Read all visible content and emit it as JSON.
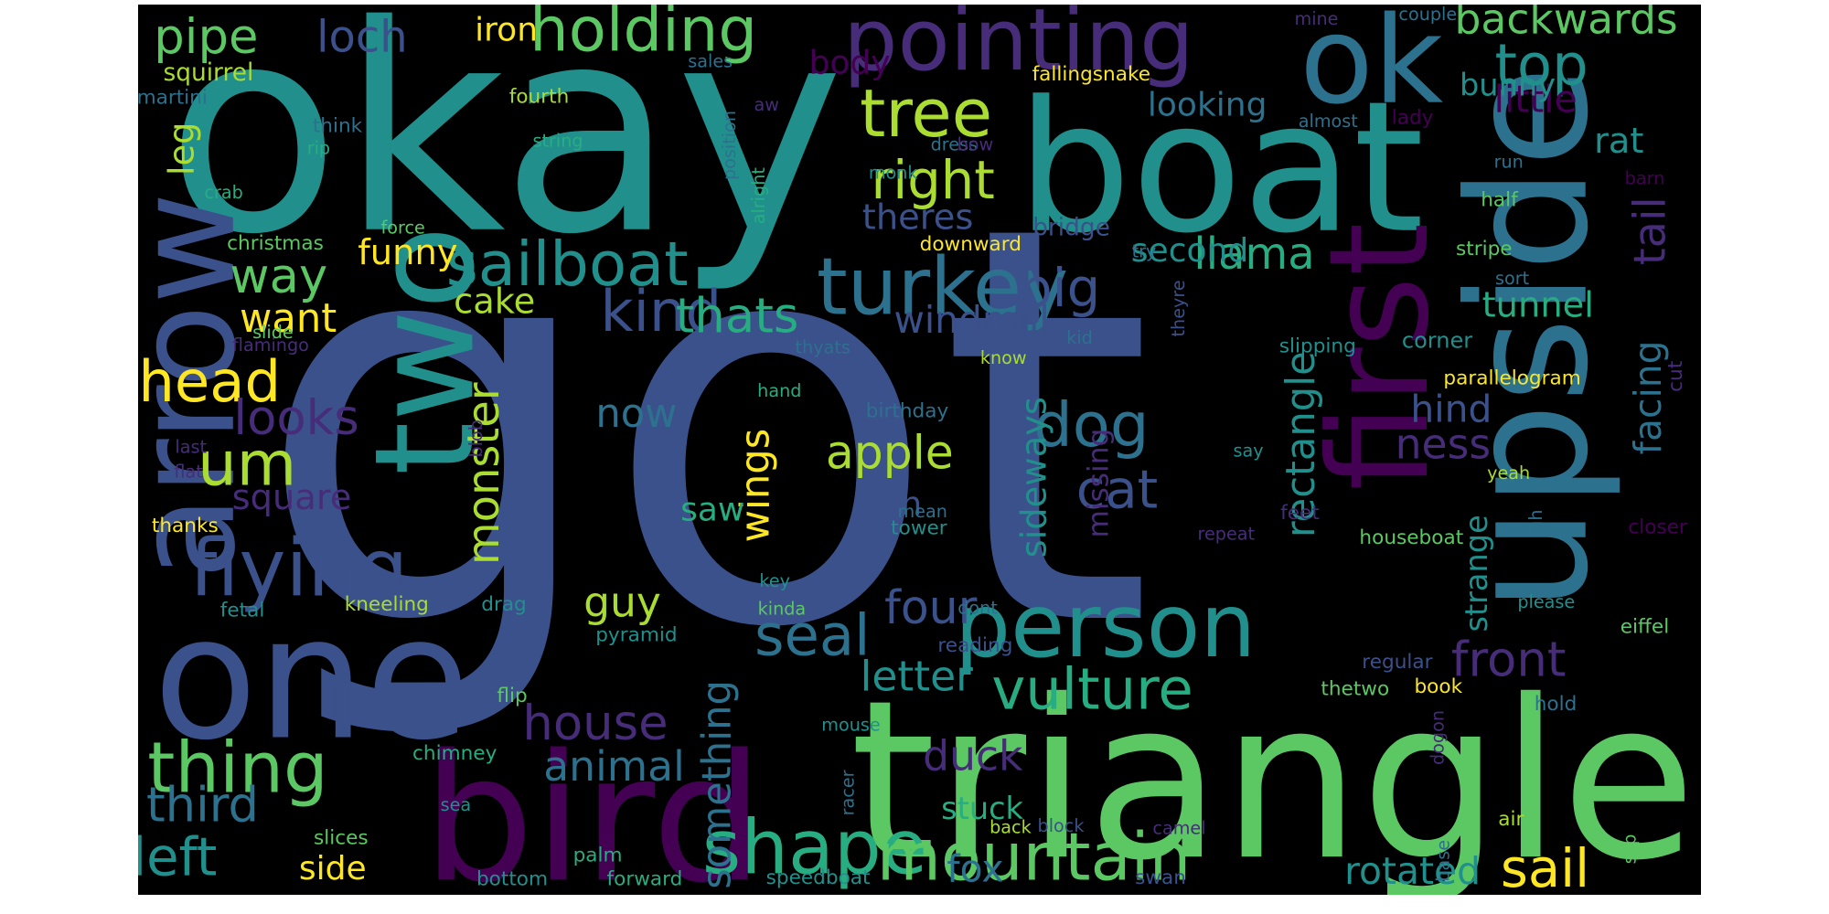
{
  "background_color": "#000000",
  "palette": [
    "#440154",
    "#472c7a",
    "#3b518b",
    "#2c718e",
    "#21908d",
    "#27ad81",
    "#5cc863",
    "#aadc32",
    "#fde725"
  ],
  "words": [
    {
      "text": "got",
      "color": "#3b518b"
    },
    {
      "text": "okay",
      "color": "#21908d"
    },
    {
      "text": "triangle",
      "color": "#5cc863"
    },
    {
      "text": "boat",
      "color": "#21908d"
    },
    {
      "text": "one",
      "color": "#3b518b"
    },
    {
      "text": "upside",
      "color": "#2c718e"
    },
    {
      "text": "bird",
      "color": "#440154"
    },
    {
      "text": "first",
      "color": "#440154"
    },
    {
      "text": "two",
      "color": "#21908d"
    },
    {
      "text": "arrow",
      "color": "#3b518b"
    },
    {
      "text": "ok",
      "color": "#2c718e"
    },
    {
      "text": "pointing",
      "color": "#472c7a"
    },
    {
      "text": "person",
      "color": "#21908d"
    },
    {
      "text": "turkey",
      "color": "#2c718e"
    },
    {
      "text": "flying",
      "color": "#3b518b"
    },
    {
      "text": "shape",
      "color": "#27ad81"
    },
    {
      "text": "mountain",
      "color": "#5cc863"
    },
    {
      "text": "thing",
      "color": "#5cc863"
    },
    {
      "text": "holding",
      "color": "#5cc863"
    },
    {
      "text": "sailboat",
      "color": "#21908d"
    },
    {
      "text": "vulture",
      "color": "#27ad81"
    },
    {
      "text": "tree",
      "color": "#aadc32"
    },
    {
      "text": "dog",
      "color": "#2c718e"
    },
    {
      "text": "top",
      "color": "#21908d"
    },
    {
      "text": "kind",
      "color": "#3b518b"
    },
    {
      "text": "um",
      "color": "#aadc32"
    },
    {
      "text": "head",
      "color": "#fde725"
    },
    {
      "text": "seal",
      "color": "#2c718e"
    },
    {
      "text": "cat",
      "color": "#3b518b"
    },
    {
      "text": "house",
      "color": "#472c7a"
    },
    {
      "text": "right",
      "color": "#aadc32"
    },
    {
      "text": "big",
      "color": "#3b518b"
    },
    {
      "text": "thats",
      "color": "#27ad81"
    },
    {
      "text": "left",
      "color": "#21908d"
    },
    {
      "text": "third",
      "color": "#2c718e"
    },
    {
      "text": "sail",
      "color": "#fde725"
    },
    {
      "text": "four",
      "color": "#3b518b"
    },
    {
      "text": "front",
      "color": "#472c7a"
    },
    {
      "text": "pipe",
      "color": "#5cc863"
    },
    {
      "text": "looks",
      "color": "#472c7a"
    },
    {
      "text": "monster",
      "color": "#aadc32"
    },
    {
      "text": "way",
      "color": "#5cc863"
    },
    {
      "text": "animal",
      "color": "#2c718e"
    },
    {
      "text": "llama",
      "color": "#27ad81"
    },
    {
      "text": "rectangle",
      "color": "#21908d"
    },
    {
      "text": "backwards",
      "color": "#5cc863"
    },
    {
      "text": "loch",
      "color": "#3b518b"
    },
    {
      "text": "apple",
      "color": "#aadc32"
    },
    {
      "text": "tail",
      "color": "#472c7a"
    },
    {
      "text": "wings",
      "color": "#fde725"
    },
    {
      "text": "letter",
      "color": "#21908d"
    },
    {
      "text": "something",
      "color": "#2c718e"
    },
    {
      "text": "rotated",
      "color": "#21908d"
    },
    {
      "text": "fox",
      "color": "#2c718e"
    },
    {
      "text": "sideways",
      "color": "#21908d"
    },
    {
      "text": "duck",
      "color": "#472c7a"
    },
    {
      "text": "now",
      "color": "#2c718e"
    },
    {
      "text": "guy",
      "color": "#aadc32"
    },
    {
      "text": "facing",
      "color": "#2c718e"
    },
    {
      "text": "ness",
      "color": "#472c7a"
    },
    {
      "text": "hind",
      "color": "#3b518b"
    },
    {
      "text": "square",
      "color": "#472c7a"
    },
    {
      "text": "want",
      "color": "#fde725"
    },
    {
      "text": "funny",
      "color": "#fde725"
    },
    {
      "text": "cake",
      "color": "#aadc32"
    },
    {
      "text": "windmill",
      "color": "#3b518b"
    },
    {
      "text": "theres",
      "color": "#3b518b"
    },
    {
      "text": "second",
      "color": "#21908d"
    },
    {
      "text": "missing",
      "color": "#472c7a"
    },
    {
      "text": "little",
      "color": "#440154"
    },
    {
      "text": "rat",
      "color": "#21908d"
    },
    {
      "text": "tunnel",
      "color": "#27ad81"
    },
    {
      "text": "bunny",
      "color": "#21908d"
    },
    {
      "text": "strange",
      "color": "#21908d"
    },
    {
      "text": "stuck",
      "color": "#27ad81"
    },
    {
      "text": "side",
      "color": "#fde725"
    },
    {
      "text": "leg",
      "color": "#aadc32"
    },
    {
      "text": "iron",
      "color": "#fde725"
    },
    {
      "text": "body",
      "color": "#440154"
    },
    {
      "text": "looking",
      "color": "#2c718e"
    },
    {
      "text": "saw",
      "color": "#27ad81"
    },
    {
      "text": "oh",
      "color": "#3b518b"
    },
    {
      "text": "squirrel",
      "color": "#aadc32"
    },
    {
      "text": "corner",
      "color": "#21908d"
    },
    {
      "text": "cut",
      "color": "#472c7a"
    },
    {
      "text": "bridge",
      "color": "#3b518b"
    },
    {
      "text": "fallingsnake",
      "color": "#fde725"
    },
    {
      "text": "parallelogram",
      "color": "#fde725"
    },
    {
      "text": "houseboat",
      "color": "#5cc863"
    },
    {
      "text": "eiffel",
      "color": "#5cc863"
    },
    {
      "text": "closer",
      "color": "#440154"
    },
    {
      "text": "slipping",
      "color": "#21908d"
    },
    {
      "text": "stripe",
      "color": "#5cc863"
    },
    {
      "text": "sort",
      "color": "#2c718e"
    },
    {
      "text": "try",
      "color": "#2c718e"
    },
    {
      "text": "downward",
      "color": "#fde725"
    },
    {
      "text": "position",
      "color": "#2c718e"
    },
    {
      "text": "alright",
      "color": "#27ad81"
    },
    {
      "text": "christmas",
      "color": "#5cc863"
    },
    {
      "text": "force",
      "color": "#5cc863"
    },
    {
      "text": "crab",
      "color": "#27ad81"
    },
    {
      "text": "flamingo",
      "color": "#472c7a"
    },
    {
      "text": "slide",
      "color": "#5cc863"
    },
    {
      "text": "birthday",
      "color": "#2c718e"
    },
    {
      "text": "hand",
      "color": "#27ad81"
    },
    {
      "text": "thyats",
      "color": "#2c718e"
    },
    {
      "text": "know",
      "color": "#aadc32"
    },
    {
      "text": "kid",
      "color": "#2c718e"
    },
    {
      "text": "mean",
      "color": "#2c718e"
    },
    {
      "text": "tower",
      "color": "#21908d"
    },
    {
      "text": "repeat",
      "color": "#472c7a"
    },
    {
      "text": "feet",
      "color": "#472c7a"
    },
    {
      "text": "uh",
      "color": "#2c718e"
    },
    {
      "text": "thanks",
      "color": "#fde725"
    },
    {
      "text": "last",
      "color": "#472c7a"
    },
    {
      "text": "flat",
      "color": "#472c7a"
    },
    {
      "text": "blob",
      "color": "#472c7a"
    },
    {
      "text": "say",
      "color": "#21908d"
    },
    {
      "text": "yeah",
      "color": "#aadc32"
    },
    {
      "text": "fetal",
      "color": "#21908d"
    },
    {
      "text": "kneeling",
      "color": "#aadc32"
    },
    {
      "text": "drag",
      "color": "#21908d"
    },
    {
      "text": "key",
      "color": "#21908d"
    },
    {
      "text": "kinda",
      "color": "#5cc863"
    },
    {
      "text": "dont",
      "color": "#2c718e"
    },
    {
      "text": "please",
      "color": "#21908d"
    },
    {
      "text": "reading",
      "color": "#3b518b"
    },
    {
      "text": "regular",
      "color": "#3b518b"
    },
    {
      "text": "pyramid",
      "color": "#21908d"
    },
    {
      "text": "thetwo",
      "color": "#5cc863"
    },
    {
      "text": "book",
      "color": "#fde725"
    },
    {
      "text": "hold",
      "color": "#2c718e"
    },
    {
      "text": "dogon",
      "color": "#472c7a"
    },
    {
      "text": "mouse",
      "color": "#21908d"
    },
    {
      "text": "flip",
      "color": "#5cc863"
    },
    {
      "text": "chimney",
      "color": "#27ad81"
    },
    {
      "text": "racer",
      "color": "#2c718e"
    },
    {
      "text": "sea",
      "color": "#21908d"
    },
    {
      "text": "back",
      "color": "#aadc32"
    },
    {
      "text": "block",
      "color": "#3b518b"
    },
    {
      "text": "camel",
      "color": "#472c7a"
    },
    {
      "text": "air",
      "color": "#aadc32"
    },
    {
      "text": "base",
      "color": "#2c718e"
    },
    {
      "text": "slip",
      "color": "#5cc863"
    },
    {
      "text": "slices",
      "color": "#5cc863"
    },
    {
      "text": "palm",
      "color": "#27ad81"
    },
    {
      "text": "swan",
      "color": "#3b518b"
    },
    {
      "text": "bottom",
      "color": "#21908d"
    },
    {
      "text": "forward",
      "color": "#27ad81"
    },
    {
      "text": "speedboat",
      "color": "#21908d"
    },
    {
      "text": "mine",
      "color": "#472c7a"
    },
    {
      "text": "couple",
      "color": "#2c718e"
    },
    {
      "text": "sales",
      "color": "#2c718e"
    },
    {
      "text": "aw",
      "color": "#472c7a"
    },
    {
      "text": "fourth",
      "color": "#aadc32"
    },
    {
      "text": "martini",
      "color": "#2c718e"
    },
    {
      "text": "think",
      "color": "#2c718e"
    },
    {
      "text": "rip",
      "color": "#27ad81"
    },
    {
      "text": "string",
      "color": "#27ad81"
    },
    {
      "text": "dress",
      "color": "#2c718e"
    },
    {
      "text": "bow",
      "color": "#472c7a"
    },
    {
      "text": "monk",
      "color": "#21908d"
    },
    {
      "text": "almost",
      "color": "#2c718e"
    },
    {
      "text": "lady",
      "color": "#440154"
    },
    {
      "text": "run",
      "color": "#2c718e"
    },
    {
      "text": "half",
      "color": "#5cc863"
    },
    {
      "text": "barn",
      "color": "#440154"
    },
    {
      "text": "theyre",
      "color": "#3b518b"
    }
  ]
}
